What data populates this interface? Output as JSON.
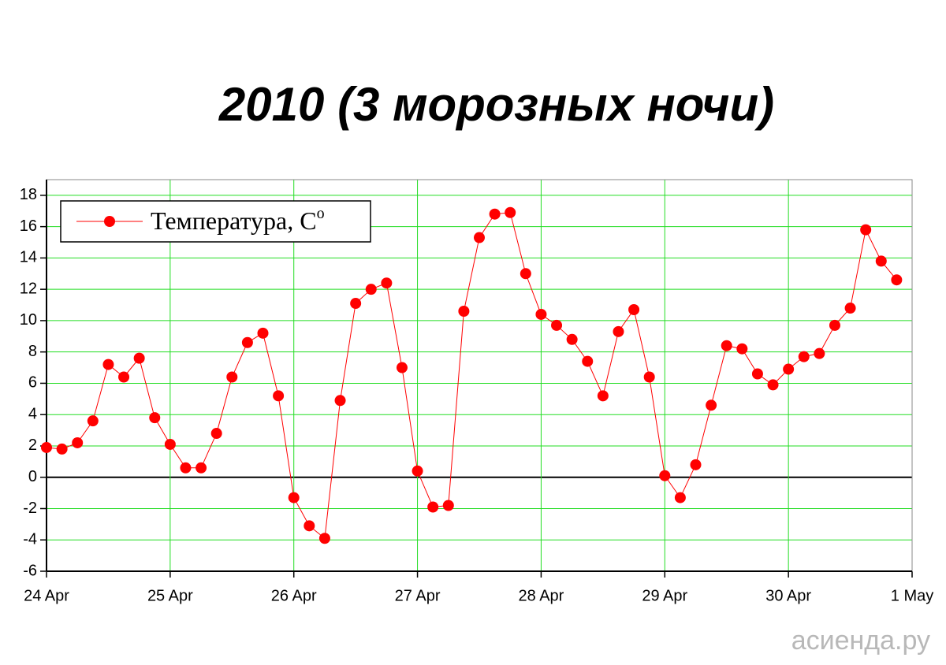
{
  "chart_data": {
    "type": "line",
    "title": "2010 (3 морозных ночи)",
    "watermark": "асиенда.ру",
    "categories": [
      "24 Apr",
      null,
      null,
      null,
      null,
      null,
      null,
      null,
      "25 Apr",
      null,
      null,
      null,
      null,
      null,
      null,
      null,
      "26 Apr",
      null,
      null,
      null,
      null,
      null,
      null,
      null,
      "27 Apr",
      null,
      null,
      null,
      null,
      null,
      null,
      null,
      "28 Apr",
      null,
      null,
      null,
      null,
      null,
      null,
      null,
      "29 Apr",
      null,
      null,
      null,
      null,
      null,
      null,
      null,
      "30 Apr",
      null,
      null,
      null,
      null,
      null,
      null,
      null,
      "1 May"
    ],
    "series": [
      {
        "name": "Температура, C",
        "name_superscript": "o",
        "color": "#ff0000",
        "values": [
          1.9,
          1.8,
          2.2,
          3.6,
          7.2,
          6.4,
          7.6,
          3.8,
          2.1,
          0.6,
          0.6,
          2.8,
          6.4,
          8.6,
          9.2,
          5.2,
          -1.3,
          -3.1,
          -3.9,
          4.9,
          11.1,
          12.0,
          12.4,
          7.0,
          0.4,
          -1.9,
          -1.8,
          10.6,
          15.3,
          16.8,
          16.9,
          13.0,
          10.4,
          9.7,
          8.8,
          7.4,
          5.2,
          9.3,
          10.7,
          6.4,
          0.1,
          -1.3,
          0.8,
          4.6,
          8.4,
          8.2,
          6.6,
          5.9,
          6.9,
          7.7,
          7.9,
          9.7,
          10.8,
          15.8,
          13.8,
          12.6,
          null
        ]
      }
    ],
    "ylim": [
      -6,
      19
    ],
    "yticks": [
      -6,
      -4,
      -2,
      0,
      2,
      4,
      6,
      8,
      10,
      12,
      14,
      16,
      18
    ],
    "grid": true,
    "grid_color": "#22dd22",
    "legend": "upper left"
  }
}
